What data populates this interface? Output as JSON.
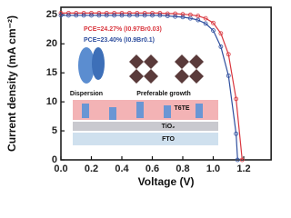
{
  "chart_data": {
    "type": "line",
    "x_label": "Voltage (V)",
    "y_label": "Current density (mA cm⁻²)",
    "xlim": [
      0,
      1.38
    ],
    "ylim": [
      0,
      26.3
    ],
    "xticks": [
      {
        "value": 0,
        "label": "0.0"
      },
      0.2,
      0.4,
      0.6,
      0.8,
      {
        "value": 1,
        "label": "1.0"
      },
      1.2
    ],
    "yticks": [
      0,
      5,
      10,
      15,
      20,
      25
    ],
    "series": [
      {
        "name": "PCE=24.27% (I0.97Br0.03)",
        "color": "#d9363e",
        "x": [
          0,
          0.05,
          0.1,
          0.15,
          0.2,
          0.25,
          0.3,
          0.35,
          0.4,
          0.45,
          0.5,
          0.55,
          0.6,
          0.65,
          0.7,
          0.75,
          0.8,
          0.85,
          0.9,
          0.95,
          1.0,
          1.05,
          1.1,
          1.15,
          1.19
        ],
        "values": [
          25.3,
          25.3,
          25.3,
          25.3,
          25.3,
          25.3,
          25.3,
          25.3,
          25.3,
          25.3,
          25.3,
          25.3,
          25.3,
          25.3,
          25.2,
          25.2,
          25.1,
          25.0,
          24.8,
          24.4,
          23.6,
          21.8,
          18.2,
          10.5,
          0
        ]
      },
      {
        "name": "PCE=23.40% (I0.9Br0.1)",
        "color": "#2e4e9e",
        "x": [
          0,
          0.05,
          0.1,
          0.15,
          0.2,
          0.25,
          0.3,
          0.35,
          0.4,
          0.45,
          0.5,
          0.55,
          0.6,
          0.65,
          0.7,
          0.75,
          0.8,
          0.85,
          0.9,
          0.95,
          1.0,
          1.05,
          1.1,
          1.15,
          1.16
        ],
        "values": [
          24.9,
          24.9,
          24.9,
          24.9,
          24.9,
          24.9,
          24.9,
          24.9,
          24.9,
          24.9,
          24.9,
          24.9,
          24.9,
          24.9,
          24.8,
          24.7,
          24.6,
          24.4,
          24.1,
          23.5,
          22.3,
          19.5,
          14.5,
          4.5,
          0
        ]
      }
    ],
    "annotations": [
      "Dispersion",
      "Preferable growth",
      "T6TE",
      "TiO₂",
      "FTO"
    ]
  }
}
